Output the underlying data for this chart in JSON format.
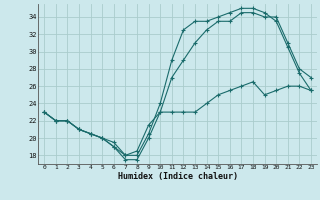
{
  "title": "",
  "xlabel": "Humidex (Indice chaleur)",
  "ylabel": "",
  "bg_color": "#cce8ec",
  "grid_color": "#aacccc",
  "line_color": "#1a6b6b",
  "xlim": [
    -0.5,
    23.5
  ],
  "ylim": [
    17,
    35.5
  ],
  "yticks": [
    18,
    20,
    22,
    24,
    26,
    28,
    30,
    32,
    34
  ],
  "xticks": [
    0,
    1,
    2,
    3,
    4,
    5,
    6,
    7,
    8,
    9,
    10,
    11,
    12,
    13,
    14,
    15,
    16,
    17,
    18,
    19,
    20,
    21,
    22,
    23
  ],
  "line1_x": [
    0,
    1,
    2,
    3,
    4,
    5,
    6,
    7,
    8,
    9,
    10,
    11,
    12,
    13,
    14,
    15,
    16,
    17,
    18,
    19,
    20,
    21,
    22,
    23
  ],
  "line1_y": [
    23,
    22,
    22,
    21,
    20.5,
    20,
    19,
    18,
    18,
    20.5,
    24,
    29,
    32.5,
    33.5,
    33.5,
    34,
    34.5,
    35,
    35,
    34.5,
    33.5,
    30.5,
    27.5,
    25.5
  ],
  "line2_x": [
    0,
    1,
    2,
    3,
    4,
    5,
    6,
    7,
    8,
    9,
    10,
    11,
    12,
    13,
    14,
    15,
    16,
    17,
    18,
    19,
    20,
    21,
    22,
    23
  ],
  "line2_y": [
    23,
    22,
    22,
    21,
    20.5,
    20,
    19,
    17.5,
    17.5,
    20,
    23,
    27,
    29,
    31,
    32.5,
    33.5,
    33.5,
    34.5,
    34.5,
    34,
    34,
    31,
    28,
    27
  ],
  "line3_x": [
    0,
    1,
    2,
    3,
    4,
    5,
    6,
    7,
    8,
    9,
    10,
    11,
    12,
    13,
    14,
    15,
    16,
    17,
    18,
    19,
    20,
    21,
    22,
    23
  ],
  "line3_y": [
    23,
    22,
    22,
    21,
    20.5,
    20,
    19.5,
    18,
    18.5,
    21.5,
    23,
    23,
    23,
    23,
    24,
    25,
    25.5,
    26,
    26.5,
    25,
    25.5,
    26,
    26,
    25.5
  ]
}
